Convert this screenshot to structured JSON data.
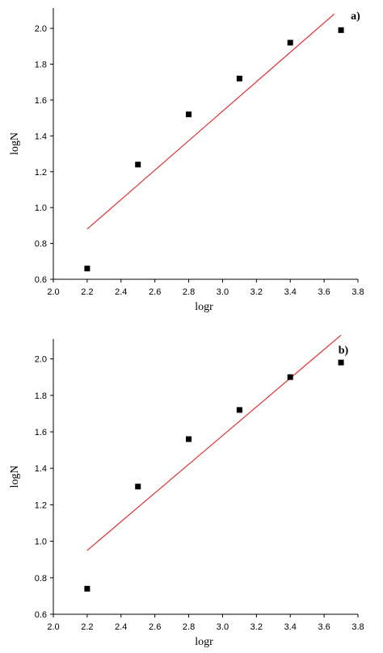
{
  "chart_data": [
    {
      "type": "scatter",
      "panel_label": "a)",
      "xlabel": "logr",
      "ylabel": "logN",
      "xlim": [
        2.0,
        3.8
      ],
      "ylim": [
        0.6,
        2.05
      ],
      "xticks": [
        "2.0",
        "2.2",
        "2.4",
        "2.6",
        "2.8",
        "3.0",
        "3.2",
        "3.4",
        "3.6",
        "3.8"
      ],
      "yticks": [
        "0.6",
        "0.8",
        "1.0",
        "1.2",
        "1.4",
        "1.6",
        "1.8",
        "2.0"
      ],
      "grid": false,
      "colors": {
        "points": "#000000",
        "fit": "#e03030"
      },
      "points": {
        "x": [
          2.2,
          2.5,
          2.8,
          3.1,
          3.4,
          3.7
        ],
        "y": [
          0.66,
          1.24,
          1.52,
          1.72,
          1.92,
          1.99
        ]
      },
      "fit_line": {
        "x": [
          2.2,
          3.66
        ],
        "y": [
          0.88,
          2.08
        ]
      }
    },
    {
      "type": "scatter",
      "panel_label": "b)",
      "xlabel": "logr",
      "ylabel": "logN",
      "xlim": [
        2.0,
        3.8
      ],
      "ylim": [
        0.6,
        2.1
      ],
      "xticks": [
        "2.0",
        "2.2",
        "2.4",
        "2.6",
        "2.8",
        "3.0",
        "3.2",
        "3.4",
        "3.6",
        "3.8"
      ],
      "yticks": [
        "0.6",
        "0.8",
        "1.0",
        "1.2",
        "1.4",
        "1.6",
        "1.8",
        "2.0"
      ],
      "grid": false,
      "colors": {
        "points": "#000000",
        "fit": "#e03030"
      },
      "points": {
        "x": [
          2.2,
          2.5,
          2.8,
          3.1,
          3.4,
          3.7
        ],
        "y": [
          0.74,
          1.3,
          1.56,
          1.72,
          1.9,
          1.98
        ]
      },
      "fit_line": {
        "x": [
          2.2,
          3.7
        ],
        "y": [
          0.95,
          2.13
        ]
      }
    }
  ]
}
